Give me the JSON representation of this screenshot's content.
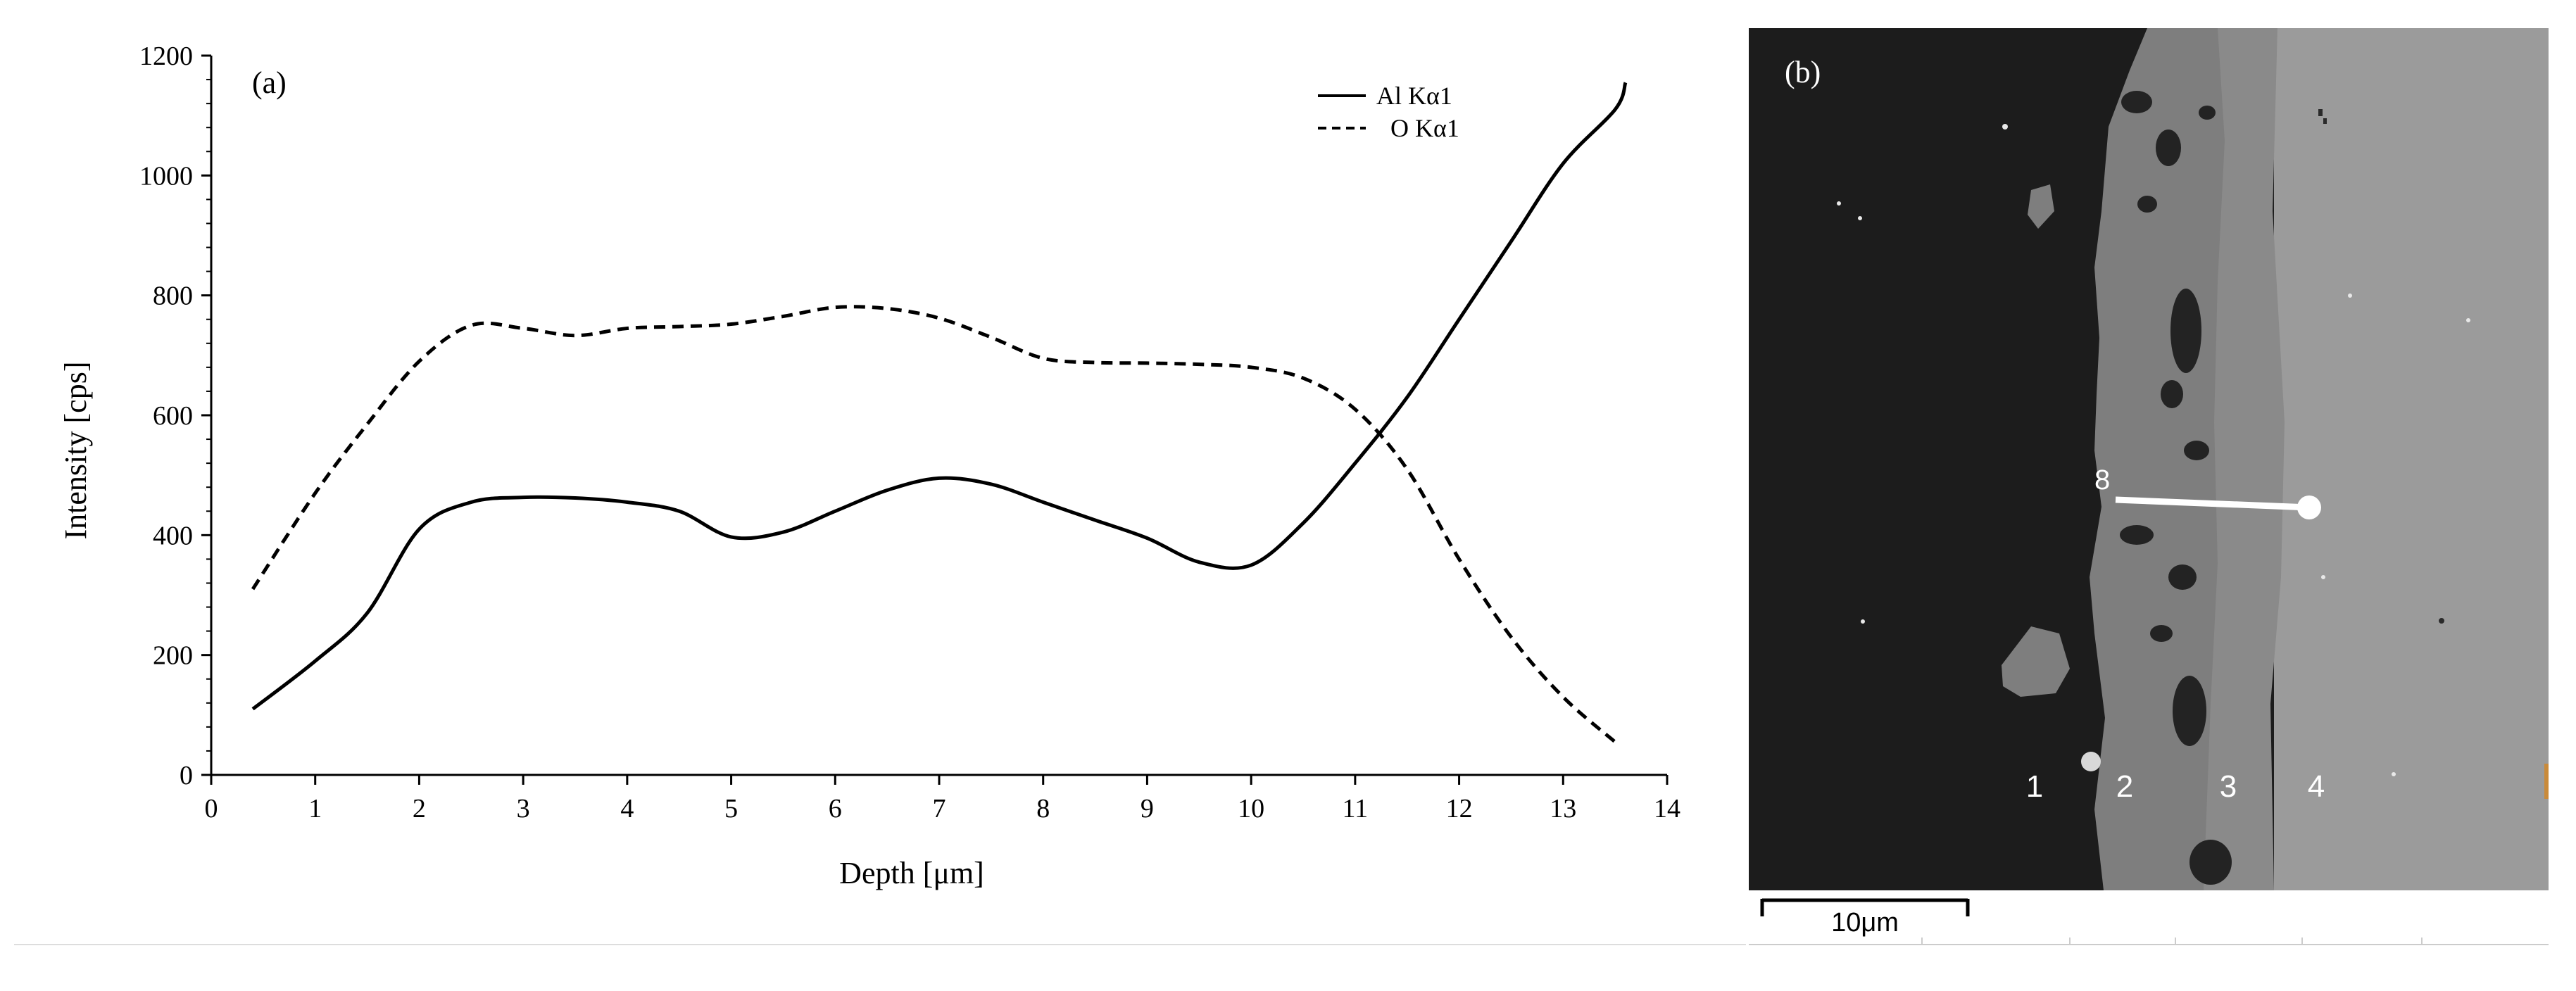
{
  "chart_data": {
    "type": "line",
    "panel_label": "(a)",
    "xlabel": "Depth [μm]",
    "ylabel": "Intensity [cps]",
    "xlim": [
      0,
      14
    ],
    "ylim": [
      0,
      1200
    ],
    "x_ticks": [
      "0",
      "1",
      "2",
      "3",
      "4",
      "5",
      "6",
      "7",
      "8",
      "9",
      "10",
      "11",
      "12",
      "13",
      "14"
    ],
    "y_ticks": [
      "0",
      "200",
      "400",
      "600",
      "800",
      "1000",
      "1200"
    ],
    "grid": false,
    "legend_position": "top-right",
    "series": [
      {
        "name": "Al Kα1",
        "style": "solid",
        "points": [
          [
            0.4,
            110
          ],
          [
            1.0,
            190
          ],
          [
            1.5,
            270
          ],
          [
            2.0,
            410
          ],
          [
            2.5,
            455
          ],
          [
            3.0,
            463
          ],
          [
            3.5,
            462
          ],
          [
            4.0,
            455
          ],
          [
            4.5,
            440
          ],
          [
            5.0,
            397
          ],
          [
            5.5,
            405
          ],
          [
            6.0,
            440
          ],
          [
            6.5,
            475
          ],
          [
            7.0,
            495
          ],
          [
            7.5,
            485
          ],
          [
            8.0,
            455
          ],
          [
            8.5,
            425
          ],
          [
            9.0,
            395
          ],
          [
            9.5,
            355
          ],
          [
            10.0,
            350
          ],
          [
            10.5,
            420
          ],
          [
            11.0,
            520
          ],
          [
            11.5,
            630
          ],
          [
            12.0,
            760
          ],
          [
            12.5,
            890
          ],
          [
            13.0,
            1020
          ],
          [
            13.5,
            1110
          ],
          [
            13.6,
            1155
          ]
        ]
      },
      {
        "name": "O Kα1",
        "style": "dashed",
        "points": [
          [
            0.4,
            310
          ],
          [
            1.0,
            470
          ],
          [
            1.5,
            585
          ],
          [
            2.0,
            690
          ],
          [
            2.5,
            750
          ],
          [
            3.0,
            745
          ],
          [
            3.5,
            733
          ],
          [
            4.0,
            745
          ],
          [
            4.5,
            748
          ],
          [
            5.0,
            752
          ],
          [
            5.5,
            765
          ],
          [
            6.0,
            780
          ],
          [
            6.5,
            778
          ],
          [
            7.0,
            762
          ],
          [
            7.5,
            730
          ],
          [
            8.0,
            695
          ],
          [
            8.5,
            688
          ],
          [
            9.0,
            687
          ],
          [
            9.5,
            685
          ],
          [
            10.0,
            680
          ],
          [
            10.5,
            662
          ],
          [
            11.0,
            610
          ],
          [
            11.5,
            510
          ],
          [
            12.0,
            360
          ],
          [
            12.5,
            230
          ],
          [
            13.0,
            130
          ],
          [
            13.5,
            55
          ]
        ]
      }
    ]
  },
  "micrograph": {
    "panel_label": "(b)",
    "region_labels": [
      "1",
      "2",
      "3",
      "4"
    ],
    "marker_label": "8",
    "scale_bar_label": "10μm"
  }
}
